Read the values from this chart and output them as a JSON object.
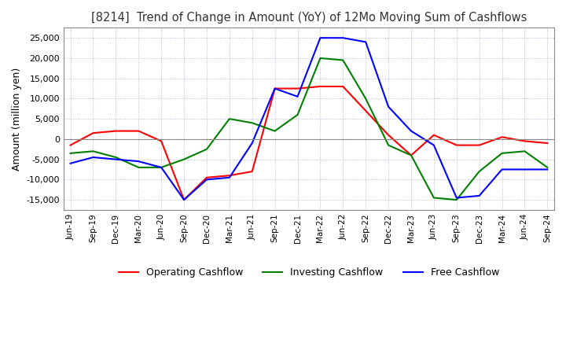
{
  "title": "[8214]  Trend of Change in Amount (YoY) of 12Mo Moving Sum of Cashflows",
  "ylabel": "Amount (million yen)",
  "x_labels": [
    "Jun-19",
    "Sep-19",
    "Dec-19",
    "Mar-20",
    "Jun-20",
    "Sep-20",
    "Dec-20",
    "Mar-21",
    "Jun-21",
    "Sep-21",
    "Dec-21",
    "Mar-22",
    "Jun-22",
    "Sep-22",
    "Dec-22",
    "Mar-23",
    "Jun-23",
    "Sep-23",
    "Dec-23",
    "Mar-24",
    "Jun-24",
    "Sep-24"
  ],
  "operating": [
    -1500,
    1500,
    2000,
    2000,
    -500,
    -15000,
    -9500,
    -9000,
    -8000,
    12500,
    12500,
    13000,
    13000,
    7000,
    1000,
    -4000,
    1000,
    -1500,
    -1500,
    500,
    -500,
    -1000
  ],
  "investing": [
    -3500,
    -3000,
    -4500,
    -7000,
    -7000,
    -5000,
    -2500,
    5000,
    4000,
    2000,
    6000,
    20000,
    19500,
    10000,
    -1500,
    -4000,
    -14500,
    -15000,
    -8000,
    -3500,
    -3000,
    -7000
  ],
  "free": [
    -6000,
    -4500,
    -5000,
    -5500,
    -7000,
    -15000,
    -10000,
    -9500,
    -1000,
    12500,
    10500,
    25000,
    25000,
    24000,
    8000,
    2000,
    -1500,
    -14500,
    -14000,
    -7500,
    -7500,
    -7500
  ],
  "operating_color": "#ff0000",
  "investing_color": "#008000",
  "free_color": "#0000ff",
  "ylim": [
    -17500,
    27500
  ],
  "yticks": [
    -15000,
    -10000,
    -5000,
    0,
    5000,
    10000,
    15000,
    20000,
    25000
  ],
  "grid_color": "#aaaacc",
  "background_color": "#ffffff"
}
